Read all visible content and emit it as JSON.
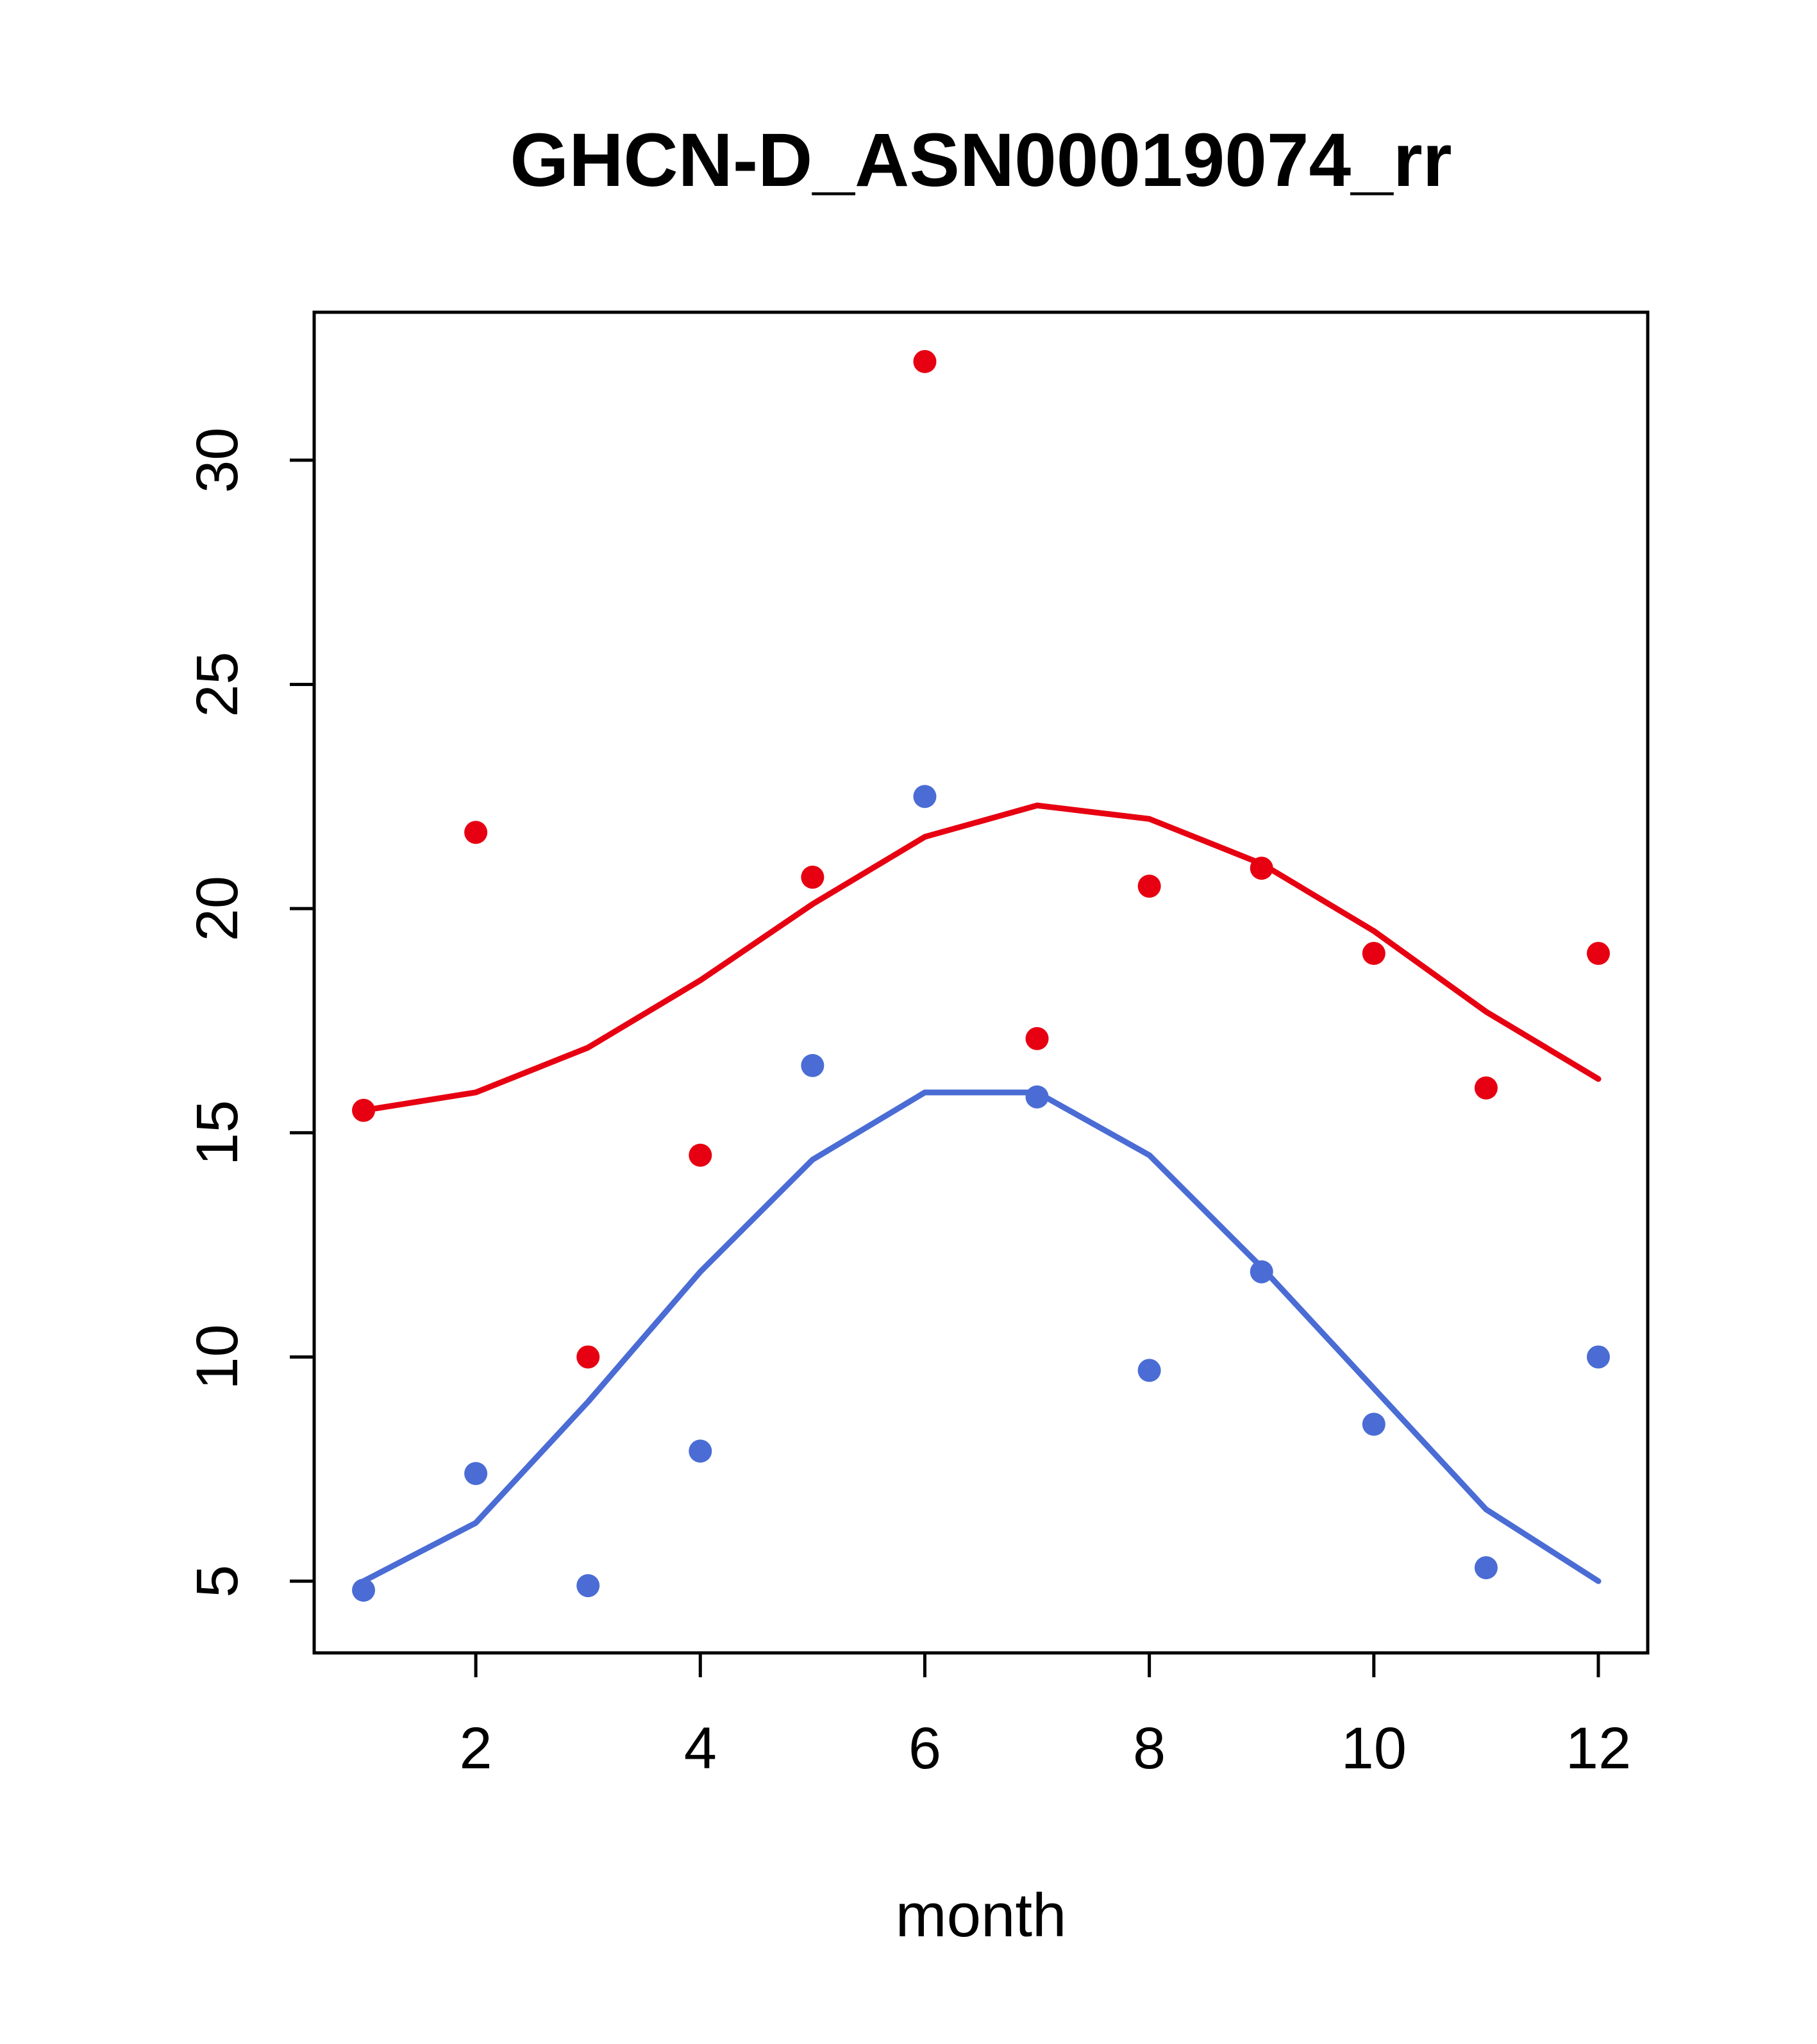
{
  "chart_data": {
    "type": "scatter",
    "title": "GHCN-D_ASN00019074_rr",
    "xlabel": "month",
    "ylabel": "",
    "xlim": [
      0.56,
      12.44
    ],
    "ylim": [
      3.4,
      33.3
    ],
    "x_ticks": [
      2,
      4,
      6,
      8,
      10,
      12
    ],
    "y_ticks": [
      5,
      10,
      15,
      20,
      25,
      30
    ],
    "grid": "off",
    "legend": "none",
    "x": [
      1,
      2,
      3,
      4,
      5,
      6,
      7,
      8,
      9,
      10,
      11,
      12
    ],
    "colors": {
      "red": "#e60011",
      "blue": "#4a6cd4"
    },
    "series": [
      {
        "name": "red-scatter",
        "kind": "points",
        "color": "#e60011",
        "values": [
          15.5,
          21.7,
          10.0,
          14.5,
          20.7,
          32.2,
          17.1,
          20.5,
          20.9,
          19.0,
          16.0,
          19.0
        ]
      },
      {
        "name": "blue-scatter",
        "kind": "points",
        "color": "#4a6cd4",
        "values": [
          4.8,
          7.4,
          4.9,
          7.9,
          16.5,
          22.5,
          15.8,
          9.7,
          11.9,
          8.5,
          5.3,
          10.0
        ]
      },
      {
        "name": "red-smooth-line",
        "kind": "line",
        "color": "#e60011",
        "values": [
          15.5,
          15.9,
          16.9,
          18.4,
          20.1,
          21.6,
          22.3,
          22.0,
          21.0,
          19.5,
          17.7,
          16.2
        ]
      },
      {
        "name": "blue-smooth-line",
        "kind": "line",
        "color": "#4a6cd4",
        "values": [
          5.0,
          6.3,
          9.0,
          11.9,
          14.4,
          15.9,
          15.9,
          14.5,
          12.0,
          9.3,
          6.6,
          5.0
        ]
      }
    ]
  }
}
